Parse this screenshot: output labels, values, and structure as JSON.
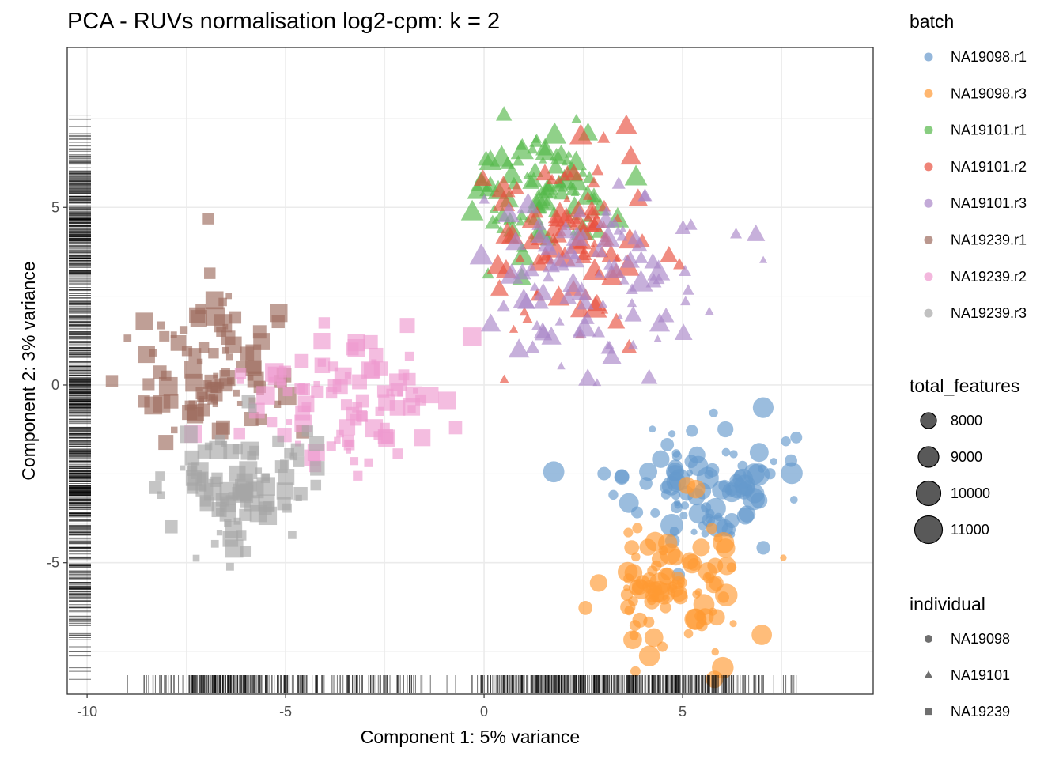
{
  "chart_data": {
    "type": "scatter",
    "title": "PCA - RUVs normalisation log2-cpm: k = 2",
    "xlabel": "Component 1: 5% variance",
    "ylabel": "Component 2: 3% variance",
    "xlim": [
      -10.5,
      9.8
    ],
    "ylim": [
      -8.7,
      9.5
    ],
    "x_ticks": [
      -10,
      -5,
      0,
      5
    ],
    "x_tick_labels": [
      "-10",
      "-5",
      "0",
      "5"
    ],
    "y_ticks": [
      -5,
      0,
      5
    ],
    "y_tick_labels": [
      "-5",
      "0",
      "5"
    ],
    "grid": true,
    "rug": true,
    "legend_position": "right",
    "legends": {
      "color": {
        "title": "batch",
        "entries": [
          {
            "label": "NA19098.r1",
            "color": "#6699CC"
          },
          {
            "label": "NA19098.r3",
            "color": "#FF9933"
          },
          {
            "label": "NA19101.r1",
            "color": "#55B84A"
          },
          {
            "label": "NA19101.r2",
            "color": "#E8503F"
          },
          {
            "label": "NA19101.r3",
            "color": "#A986C7"
          },
          {
            "label": "NA19239.r1",
            "color": "#9C6B5E"
          },
          {
            "label": "NA19239.r2",
            "color": "#EE99CF"
          },
          {
            "label": "NA19239.r3",
            "color": "#A6A6A6"
          }
        ]
      },
      "size": {
        "title": "total_features",
        "entries": [
          {
            "label": "8000",
            "value": 8000
          },
          {
            "label": "9000",
            "value": 9000
          },
          {
            "label": "10000",
            "value": 10000
          },
          {
            "label": "11000",
            "value": 11000
          }
        ]
      },
      "shape": {
        "title": "individual",
        "entries": [
          {
            "label": "NA19098",
            "shape": "circle"
          },
          {
            "label": "NA19101",
            "shape": "triangle"
          },
          {
            "label": "NA19239",
            "shape": "square"
          }
        ]
      }
    },
    "series": [
      {
        "name": "NA19098.r1",
        "individual": "NA19098",
        "color": "#6699CC",
        "cluster": {
          "cx": 5.6,
          "cy": -2.8,
          "sx": 1.1,
          "sy": 0.85,
          "n": 96,
          "size_range": [
            7500,
            10800
          ]
        }
      },
      {
        "name": "NA19098.r3",
        "individual": "NA19098",
        "color": "#FF9933",
        "cluster": {
          "cx": 4.8,
          "cy": -5.6,
          "sx": 0.85,
          "sy": 0.95,
          "n": 96,
          "size_range": [
            7500,
            10800
          ]
        }
      },
      {
        "name": "NA19101.r1",
        "individual": "NA19101",
        "color": "#55B84A",
        "cluster": {
          "cx": 1.5,
          "cy": 5.4,
          "sx": 0.95,
          "sy": 1.0,
          "n": 96,
          "size_range": [
            7500,
            10800
          ]
        }
      },
      {
        "name": "NA19101.r2",
        "individual": "NA19101",
        "color": "#E8503F",
        "cluster": {
          "cx": 2.3,
          "cy": 4.2,
          "sx": 1.0,
          "sy": 1.5,
          "n": 96,
          "size_range": [
            7500,
            10800
          ]
        }
      },
      {
        "name": "NA19101.r3",
        "individual": "NA19101",
        "color": "#A986C7",
        "cluster": {
          "cx": 2.8,
          "cy": 3.0,
          "sx": 1.4,
          "sy": 1.2,
          "n": 96,
          "size_range": [
            7500,
            10800
          ]
        }
      },
      {
        "name": "NA19239.r1",
        "individual": "NA19239",
        "color": "#9C6B5E",
        "cluster": {
          "cx": -6.7,
          "cy": 0.4,
          "sx": 1.0,
          "sy": 1.1,
          "n": 96,
          "size_range": [
            7500,
            10800
          ]
        }
      },
      {
        "name": "NA19239.r2",
        "individual": "NA19239",
        "color": "#EE99CF",
        "cluster": {
          "cx": -3.4,
          "cy": -0.5,
          "sx": 1.2,
          "sy": 1.0,
          "n": 96,
          "size_range": [
            7500,
            10800
          ]
        }
      },
      {
        "name": "NA19239.r3",
        "individual": "NA19239",
        "color": "#A6A6A6",
        "cluster": {
          "cx": -6.3,
          "cy": -3.0,
          "sx": 1.0,
          "sy": 0.9,
          "n": 96,
          "size_range": [
            7500,
            10800
          ]
        }
      }
    ]
  }
}
